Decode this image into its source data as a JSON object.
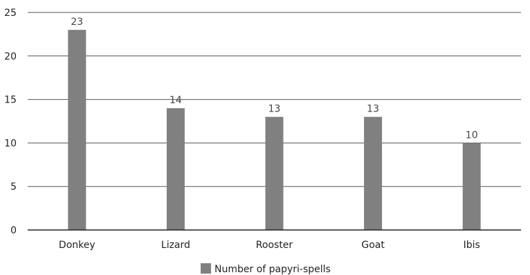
{
  "chart_data": {
    "type": "bar",
    "categories": [
      "Donkey",
      "Lizard",
      "Rooster",
      "Goat",
      "Ibis"
    ],
    "series": [
      {
        "name": "Number of papyri-spells",
        "values": [
          23,
          14,
          13,
          13,
          10
        ]
      }
    ],
    "ylim": [
      0,
      25
    ],
    "y_ticks": [
      0,
      5,
      10,
      15,
      20,
      25
    ],
    "grid": true,
    "legend": "bottom",
    "bar_color": "#808080",
    "data_labels": [
      "23",
      "14",
      "13",
      "13",
      "10"
    ],
    "title": "",
    "xlabel": "",
    "ylabel": ""
  }
}
